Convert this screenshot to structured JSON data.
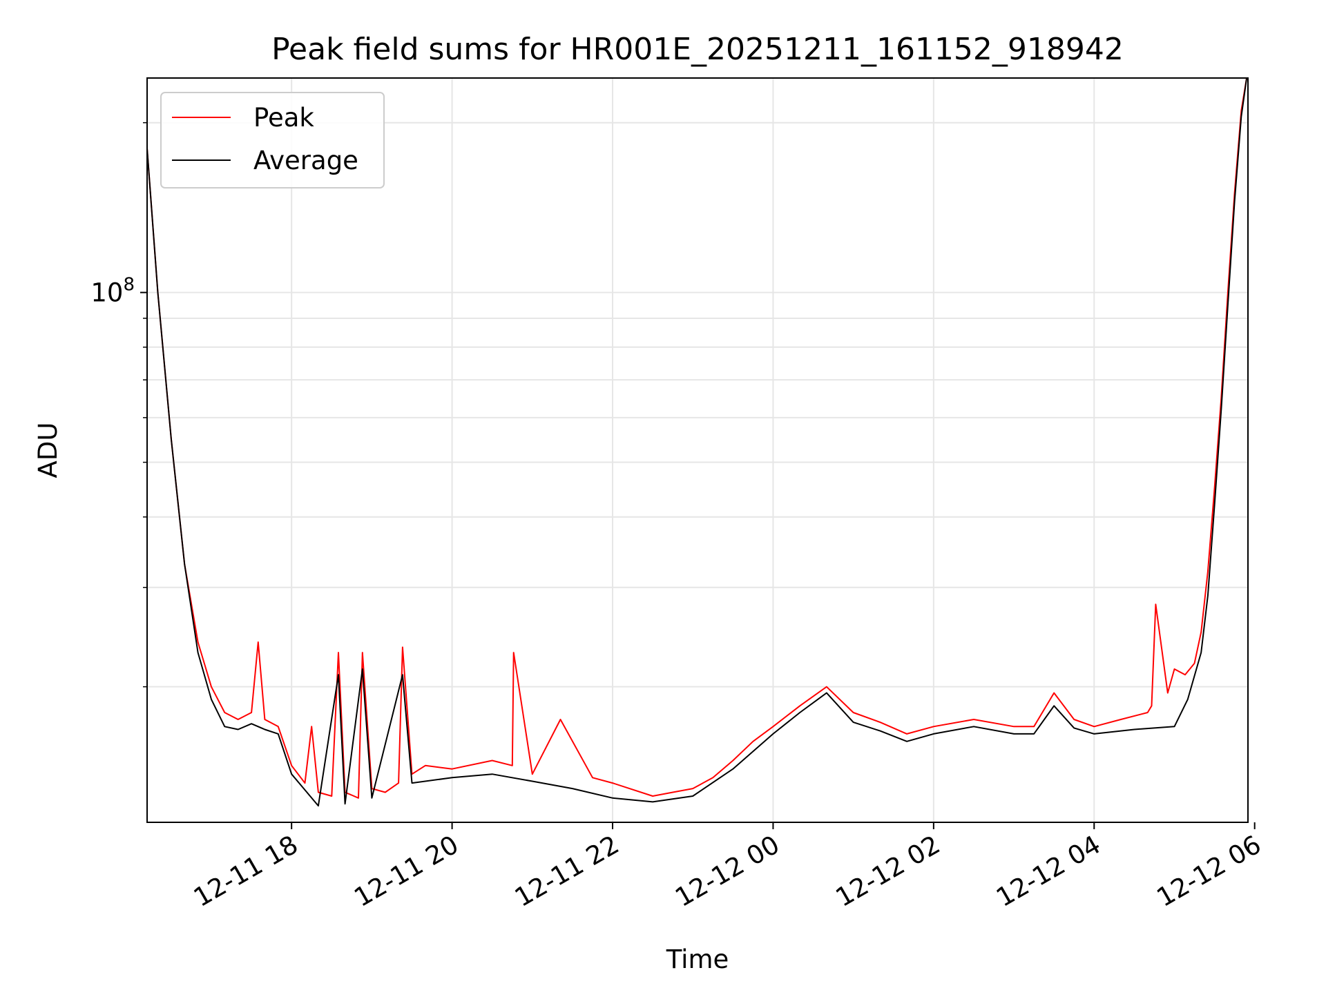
{
  "chart_data": {
    "type": "line",
    "title": "Peak field sums for HR001E_20251211_161152_918942",
    "xlabel": "Time",
    "ylabel": "ADU",
    "y_scale": "log",
    "ylim": [
      11500000,
      240000000
    ],
    "y_major_ticks": [
      {
        "value": 100000000,
        "base": "10",
        "exponent": "8"
      }
    ],
    "y_minor_ticks": [
      20000000,
      30000000,
      40000000,
      50000000,
      60000000,
      70000000,
      80000000,
      90000000,
      200000000
    ],
    "xlim": [
      "2025-12-11 16:12",
      "2025-12-12 05:55"
    ],
    "x_ticks": [
      {
        "value": "2025-12-11 18:00",
        "label": "12-11 18"
      },
      {
        "value": "2025-12-11 20:00",
        "label": "12-11 20"
      },
      {
        "value": "2025-12-11 22:00",
        "label": "12-11 22"
      },
      {
        "value": "2025-12-12 00:00",
        "label": "12-12 00"
      },
      {
        "value": "2025-12-12 02:00",
        "label": "12-12 02"
      },
      {
        "value": "2025-12-12 04:00",
        "label": "12-12 04"
      },
      {
        "value": "2025-12-12 06:00",
        "label": "12-12 06"
      }
    ],
    "grid": true,
    "legend_position": "top-left",
    "colors": {
      "Peak": "#ff0000",
      "Average": "#000000"
    },
    "series": [
      {
        "name": "Peak",
        "x": [
          "2025-12-11 16:12",
          "2025-12-11 16:20",
          "2025-12-11 16:30",
          "2025-12-11 16:40",
          "2025-12-11 16:50",
          "2025-12-11 17:00",
          "2025-12-11 17:10",
          "2025-12-11 17:20",
          "2025-12-11 17:30",
          "2025-12-11 17:35",
          "2025-12-11 17:40",
          "2025-12-11 17:50",
          "2025-12-11 18:00",
          "2025-12-11 18:10",
          "2025-12-11 18:15",
          "2025-12-11 18:20",
          "2025-12-11 18:30",
          "2025-12-11 18:35",
          "2025-12-11 18:40",
          "2025-12-11 18:50",
          "2025-12-11 18:53",
          "2025-12-11 19:00",
          "2025-12-11 19:10",
          "2025-12-11 19:20",
          "2025-12-11 19:23",
          "2025-12-11 19:30",
          "2025-12-11 19:40",
          "2025-12-11 20:00",
          "2025-12-11 20:30",
          "2025-12-11 20:45",
          "2025-12-11 20:46",
          "2025-12-11 21:00",
          "2025-12-11 21:21",
          "2025-12-11 21:45",
          "2025-12-11 22:00",
          "2025-12-11 22:30",
          "2025-12-11 22:45",
          "2025-12-11 23:00",
          "2025-12-11 23:15",
          "2025-12-11 23:30",
          "2025-12-11 23:45",
          "2025-12-12 00:00",
          "2025-12-12 00:20",
          "2025-12-12 00:40",
          "2025-12-12 01:00",
          "2025-12-12 01:20",
          "2025-12-12 01:40",
          "2025-12-12 02:00",
          "2025-12-12 02:30",
          "2025-12-12 03:00",
          "2025-12-12 03:15",
          "2025-12-12 03:30",
          "2025-12-12 03:45",
          "2025-12-12 04:00",
          "2025-12-12 04:20",
          "2025-12-12 04:40",
          "2025-12-12 04:43",
          "2025-12-12 04:46",
          "2025-12-12 04:55",
          "2025-12-12 05:00",
          "2025-12-12 05:08",
          "2025-12-12 05:15",
          "2025-12-12 05:20",
          "2025-12-12 05:25",
          "2025-12-12 05:30",
          "2025-12-12 05:35",
          "2025-12-12 05:40",
          "2025-12-12 05:45",
          "2025-12-12 05:50",
          "2025-12-12 05:54"
        ],
        "values": [
          180000000,
          100000000,
          55000000,
          33000000,
          24000000,
          20000000,
          18000000,
          17500000,
          18000000,
          24000000,
          17500000,
          17000000,
          14500000,
          13500000,
          17000000,
          13000000,
          12800000,
          23000000,
          13000000,
          12700000,
          23000000,
          13200000,
          13000000,
          13500000,
          23500000,
          14000000,
          14500000,
          14300000,
          14800000,
          14500000,
          23000000,
          14000000,
          17500000,
          13800000,
          13500000,
          12800000,
          13000000,
          13200000,
          13800000,
          14800000,
          16000000,
          17000000,
          18500000,
          20000000,
          18000000,
          17300000,
          16500000,
          17000000,
          17500000,
          17000000,
          17000000,
          19500000,
          17500000,
          17000000,
          17500000,
          18000000,
          18500000,
          28000000,
          19500000,
          21500000,
          21000000,
          22000000,
          25000000,
          32000000,
          45000000,
          65000000,
          100000000,
          150000000,
          210000000,
          240000000
        ]
      },
      {
        "name": "Average",
        "x": [
          "2025-12-11 16:12",
          "2025-12-11 16:20",
          "2025-12-11 16:30",
          "2025-12-11 16:40",
          "2025-12-11 16:50",
          "2025-12-11 17:00",
          "2025-12-11 17:10",
          "2025-12-11 17:20",
          "2025-12-11 17:30",
          "2025-12-11 17:40",
          "2025-12-11 17:50",
          "2025-12-11 18:00",
          "2025-12-11 18:20",
          "2025-12-11 18:35",
          "2025-12-11 18:40",
          "2025-12-11 18:53",
          "2025-12-11 19:00",
          "2025-12-11 19:23",
          "2025-12-11 19:30",
          "2025-12-11 20:00",
          "2025-12-11 20:30",
          "2025-12-11 21:00",
          "2025-12-11 21:30",
          "2025-12-11 22:00",
          "2025-12-11 22:30",
          "2025-12-11 23:00",
          "2025-12-11 23:30",
          "2025-12-12 00:00",
          "2025-12-12 00:20",
          "2025-12-12 00:40",
          "2025-12-12 01:00",
          "2025-12-12 01:20",
          "2025-12-12 01:40",
          "2025-12-12 02:00",
          "2025-12-12 02:30",
          "2025-12-12 03:00",
          "2025-12-12 03:15",
          "2025-12-12 03:30",
          "2025-12-12 03:45",
          "2025-12-12 04:00",
          "2025-12-12 04:30",
          "2025-12-12 05:00",
          "2025-12-12 05:10",
          "2025-12-12 05:20",
          "2025-12-12 05:25",
          "2025-12-12 05:30",
          "2025-12-12 05:35",
          "2025-12-12 05:40",
          "2025-12-12 05:45",
          "2025-12-12 05:50",
          "2025-12-12 05:54"
        ],
        "values": [
          180000000,
          100000000,
          55000000,
          33000000,
          23000000,
          19000000,
          17000000,
          16800000,
          17200000,
          16800000,
          16500000,
          14000000,
          12300000,
          21000000,
          12400000,
          21500000,
          12700000,
          21000000,
          13500000,
          13800000,
          14000000,
          13600000,
          13200000,
          12700000,
          12500000,
          12800000,
          14300000,
          16500000,
          18000000,
          19500000,
          17300000,
          16700000,
          16000000,
          16500000,
          17000000,
          16500000,
          16500000,
          18500000,
          16900000,
          16500000,
          16800000,
          17000000,
          19000000,
          23000000,
          29000000,
          42000000,
          62000000,
          95000000,
          145000000,
          205000000,
          240000000
        ]
      }
    ],
    "legend": [
      {
        "label": "Peak",
        "color": "#ff0000"
      },
      {
        "label": "Average",
        "color": "#000000"
      }
    ]
  }
}
